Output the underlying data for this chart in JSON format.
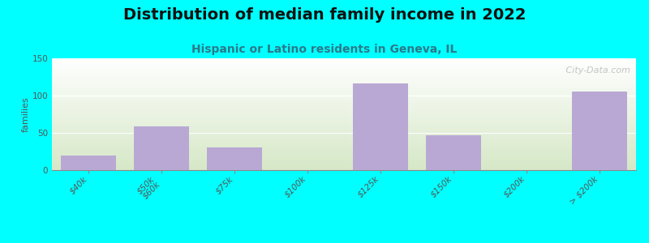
{
  "title": "Distribution of median family income in 2022",
  "subtitle": "Hispanic or Latino residents in Geneva, IL",
  "ylabel": "families",
  "categories": [
    "$40k",
    "$50k\n$60k",
    "$75k",
    "$100k",
    "$125k",
    "$150k",
    "$200k",
    "> $200k"
  ],
  "values": [
    20,
    59,
    30,
    0,
    116,
    47,
    0,
    105
  ],
  "bar_color": "#b9a8d4",
  "background_color": "#00ffff",
  "ylim": [
    0,
    150
  ],
  "yticks": [
    0,
    50,
    100,
    150
  ],
  "title_fontsize": 14,
  "subtitle_fontsize": 10,
  "ylabel_fontsize": 8,
  "tick_fontsize": 7.5,
  "watermark": " City-Data.com"
}
